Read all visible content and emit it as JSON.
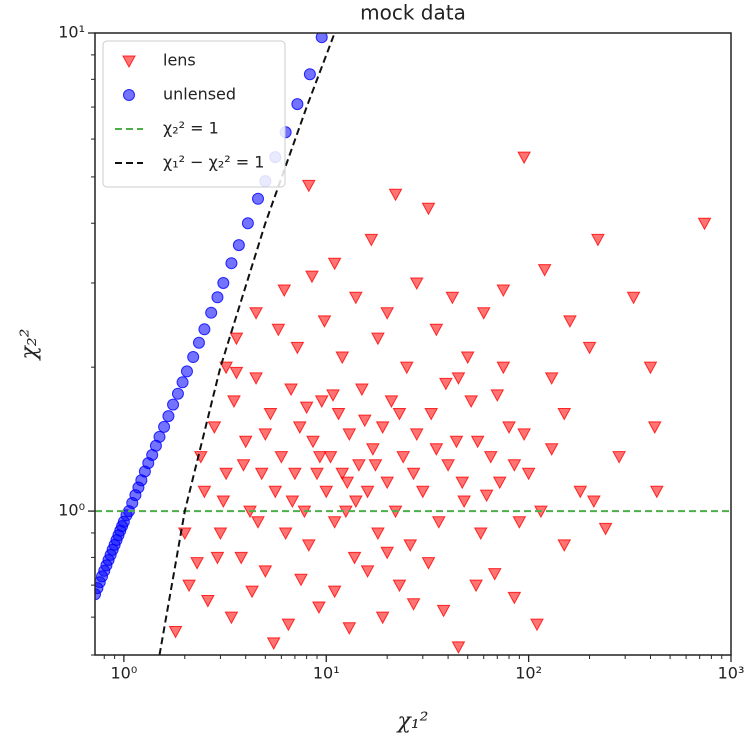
{
  "chart_data": {
    "type": "scatter",
    "title": "mock data",
    "x_label": "χ₁²",
    "y_label": "χ₂²",
    "log_x": true,
    "log_y": true,
    "grid": false,
    "legend": "upper left",
    "xlim": [
      0.72,
      1000
    ],
    "ylim": [
      0.5,
      10
    ],
    "xticks": [
      {
        "value": 1,
        "label": "10⁰"
      },
      {
        "value": 10,
        "label": "10¹"
      },
      {
        "value": 100,
        "label": "10²"
      },
      {
        "value": 1000,
        "label": "10³"
      }
    ],
    "yticks": [
      {
        "value": 1,
        "label": "10⁰"
      },
      {
        "value": 10,
        "label": "10¹"
      }
    ],
    "xminorticks": [
      0.8,
      0.9,
      2,
      3,
      4,
      5,
      6,
      7,
      8,
      9,
      20,
      30,
      40,
      50,
      60,
      70,
      80,
      90,
      200,
      300,
      400,
      500,
      600,
      700,
      800,
      900
    ],
    "yminorticks": [
      0.5,
      0.6,
      0.7,
      0.8,
      0.9,
      2,
      3,
      4,
      5,
      6,
      7,
      8,
      9
    ],
    "series": [
      {
        "name": "lens",
        "type": "scatter",
        "marker": "triangle-down",
        "color": "#ff0000",
        "x": [
          2.4,
          2.5,
          2.8,
          3.0,
          3.2,
          3.5,
          3.8,
          4.0,
          4.2,
          4.5,
          4.8,
          5.0,
          5.3,
          5.6,
          6.0,
          6.3,
          6.7,
          7.0,
          7.4,
          7.8,
          8.2,
          8.6,
          9.0,
          9.5,
          10,
          10.5,
          11,
          11.5,
          12,
          12.5,
          13,
          13.8,
          14.5,
          15,
          16,
          17,
          18,
          19,
          20,
          21,
          22,
          24,
          26,
          28,
          30,
          33,
          36,
          40,
          44,
          48,
          52,
          58,
          65,
          72,
          80,
          90,
          100,
          115,
          130,
          150,
          180,
          210,
          240,
          1.8,
          2.1,
          2.6,
          3.4,
          4.3,
          5.5,
          6.5,
          7.5,
          9.2,
          11,
          13,
          16,
          19,
          23,
          27,
          32,
          38,
          45,
          55,
          68,
          85,
          110,
          3.2,
          3.6,
          3.6,
          4.5,
          5.8,
          6.2,
          7.2,
          8.2,
          8.5,
          9.8,
          11,
          12,
          14,
          16.7,
          18,
          20,
          22,
          25,
          28,
          32,
          35,
          42,
          50,
          60,
          75,
          95,
          120,
          160,
          220,
          330,
          400,
          430,
          740,
          130,
          75,
          45,
          150,
          280,
          420,
          200,
          5.0,
          6.8,
          8.0,
          9.3,
          10.8,
          12.7,
          14,
          15.5,
          17.5,
          20,
          23,
          27,
          35,
          39,
          47,
          56,
          62,
          70,
          85,
          95,
          3.1,
          3.9,
          4.6,
          2.9,
          2.0,
          2.3
        ],
        "values": [
          1.3,
          1.1,
          1.5,
          0.9,
          1.2,
          1.7,
          0.8,
          1.4,
          1.0,
          1.9,
          1.2,
          0.75,
          1.6,
          1.1,
          1.3,
          0.9,
          1.8,
          1.2,
          1.5,
          1.0,
          0.85,
          1.4,
          1.2,
          1.7,
          1.1,
          1.3,
          0.95,
          1.6,
          1.2,
          1.0,
          1.45,
          0.8,
          1.25,
          1.8,
          1.1,
          1.35,
          0.9,
          1.5,
          1.15,
          1.7,
          1.0,
          1.3,
          0.85,
          1.45,
          1.1,
          1.6,
          0.95,
          1.25,
          1.4,
          1.05,
          1.7,
          0.9,
          1.3,
          1.15,
          1.5,
          0.95,
          1.2,
          1.0,
          1.35,
          0.85,
          1.1,
          1.05,
          0.92,
          0.56,
          0.7,
          0.65,
          0.6,
          0.68,
          0.53,
          0.58,
          0.72,
          0.63,
          0.68,
          0.57,
          0.75,
          0.6,
          0.7,
          0.64,
          0.78,
          0.62,
          0.52,
          0.7,
          0.74,
          0.66,
          0.58,
          2.0,
          2.3,
          1.95,
          2.6,
          2.4,
          2.9,
          2.2,
          4.8,
          3.1,
          2.5,
          3.3,
          2.1,
          2.8,
          3.7,
          2.3,
          2.6,
          4.6,
          2.0,
          3.0,
          4.3,
          2.4,
          2.8,
          2.1,
          2.6,
          2.9,
          5.5,
          3.2,
          2.5,
          3.7,
          2.8,
          2.0,
          1.1,
          4.0,
          1.9,
          2.0,
          1.9,
          1.6,
          1.3,
          1.5,
          2.2,
          1.45,
          1.05,
          1.65,
          1.3,
          1.75,
          1.15,
          1.05,
          1.55,
          1.25,
          0.82,
          1.6,
          1.2,
          1.35,
          1.85,
          1.15,
          1.4,
          1.08,
          1.75,
          1.25,
          1.45,
          1.05,
          1.25,
          0.95,
          0.8,
          0.9,
          0.78
        ]
      },
      {
        "name": "unlensed",
        "type": "scatter",
        "marker": "circle",
        "color": "#0000ff",
        "x": [
          0.72,
          0.74,
          0.76,
          0.78,
          0.8,
          0.82,
          0.84,
          0.86,
          0.88,
          0.9,
          0.92,
          0.94,
          0.96,
          0.98,
          1.0,
          1.03,
          1.06,
          1.1,
          1.14,
          1.18,
          1.22,
          1.27,
          1.32,
          1.38,
          1.44,
          1.5,
          1.58,
          1.66,
          1.75,
          1.85,
          1.95,
          2.05,
          2.2,
          2.35,
          2.5,
          2.7,
          2.9,
          3.1,
          3.4,
          3.7,
          4.1,
          4.6,
          5.0,
          5.6,
          6.3,
          7.2,
          8.3,
          9.5
        ],
        "values": [
          0.67,
          0.69,
          0.71,
          0.73,
          0.75,
          0.77,
          0.79,
          0.81,
          0.83,
          0.85,
          0.87,
          0.89,
          0.91,
          0.93,
          0.95,
          0.98,
          1.0,
          1.04,
          1.08,
          1.12,
          1.16,
          1.21,
          1.26,
          1.31,
          1.37,
          1.43,
          1.5,
          1.58,
          1.67,
          1.76,
          1.86,
          1.96,
          2.1,
          2.25,
          2.4,
          2.6,
          2.8,
          3.0,
          3.3,
          3.6,
          4.0,
          4.5,
          4.9,
          5.5,
          6.2,
          7.1,
          8.2,
          9.8
        ]
      },
      {
        "name": "χ₂² = 1",
        "type": "line",
        "dash": "dashed",
        "color": "#4daf4a",
        "x": [
          0.72,
          1000
        ],
        "values": [
          1,
          1
        ]
      },
      {
        "name": "χ₁² − χ₂² = 1",
        "type": "line",
        "dash": "dashed",
        "color": "#111111",
        "x": [
          1.5,
          2,
          3,
          5,
          8,
          11
        ],
        "values": [
          0.5,
          1,
          2,
          4,
          7,
          10
        ]
      }
    ]
  }
}
